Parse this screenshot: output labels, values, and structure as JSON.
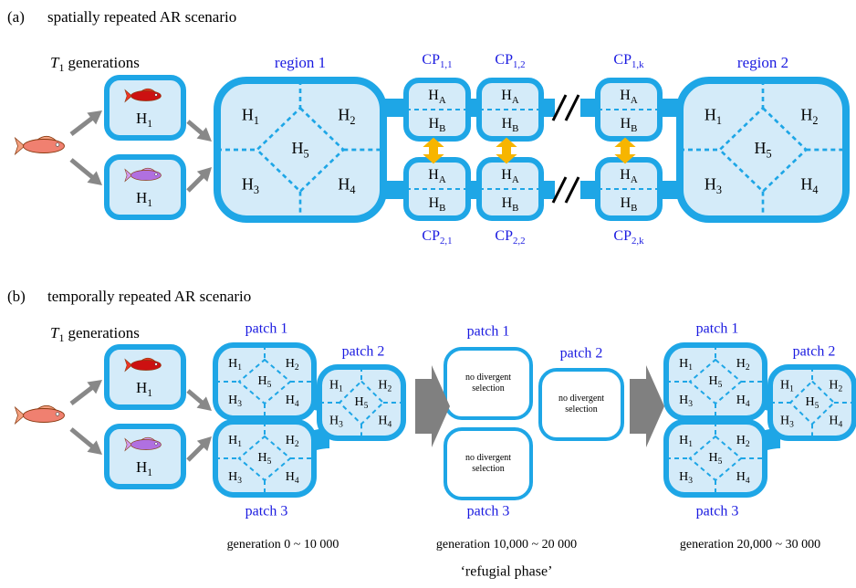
{
  "panel_a": {
    "label": "(a)",
    "title": "spatially repeated AR scenario",
    "generations": {
      "symbol": "T",
      "sub": "1",
      "text": "generations"
    },
    "fish_habitat": {
      "main": "H",
      "sub": "1"
    },
    "regions": [
      "region 1",
      "region 2"
    ],
    "region_habitats": [
      {
        "main": "H",
        "sub": "1"
      },
      {
        "main": "H",
        "sub": "2"
      },
      {
        "main": "H",
        "sub": "5"
      },
      {
        "main": "H",
        "sub": "3"
      },
      {
        "main": "H",
        "sub": "4"
      }
    ],
    "cp_top": [
      {
        "main": "CP",
        "sub": "1,1"
      },
      {
        "main": "CP",
        "sub": "1,2"
      },
      {
        "main": "CP",
        "sub": "1,k"
      }
    ],
    "cp_bottom": [
      {
        "main": "CP",
        "sub": "2,1"
      },
      {
        "main": "CP",
        "sub": "2,2"
      },
      {
        "main": "CP",
        "sub": "2,k"
      }
    ],
    "cp_habitats": [
      {
        "main": "H",
        "sub": "A"
      },
      {
        "main": "H",
        "sub": "B"
      }
    ]
  },
  "panel_b": {
    "label": "(b)",
    "title": "temporally repeated AR scenario",
    "generations": {
      "symbol": "T",
      "sub": "1",
      "text": "generations"
    },
    "fish_habitat": {
      "main": "H",
      "sub": "1"
    },
    "patches": [
      "patch 1",
      "patch 2",
      "patch 3"
    ],
    "patch_habitats": [
      {
        "main": "H",
        "sub": "1"
      },
      {
        "main": "H",
        "sub": "2"
      },
      {
        "main": "H",
        "sub": "5"
      },
      {
        "main": "H",
        "sub": "3"
      },
      {
        "main": "H",
        "sub": "4"
      }
    ],
    "no_selection": "no divergent selection",
    "phases": [
      "generation 0 ~ 10 000",
      "generation 10,000 ~ 20 000",
      "generation 20,000 ~ 30 000"
    ],
    "note": "‘refugial phase’"
  }
}
